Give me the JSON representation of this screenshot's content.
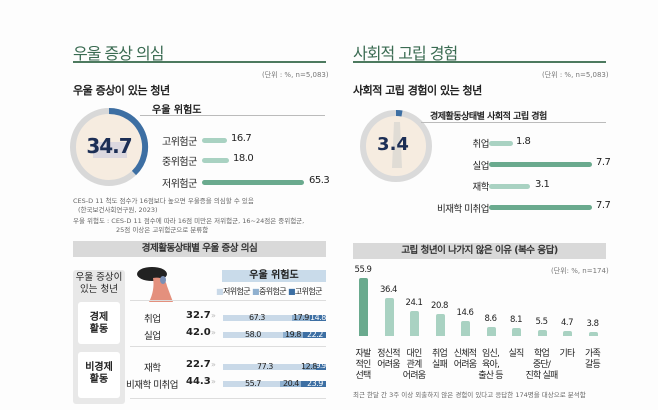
{
  "left": {
    "title": "우울 증상 의심",
    "unit": "(단위 : %, n=5,083)",
    "subhead": "우울 증상이 있는 청년",
    "donut_value": "34.7",
    "risk_title": "우울 위험도",
    "risk_bars": [
      {
        "label": "고위험군",
        "value": "16.7"
      },
      {
        "label": "중위험군",
        "value": "18.0"
      },
      {
        "label": "저위험군",
        "value": "65.3"
      }
    ],
    "notes": [
      "CES-D 11 척도 점수가 16점보다 높으면 우울증을 의심할 수 있음",
      "(한국보건사회연구원, 2023)",
      "우울 위험도 : CES-D 11 점수에 따라 16점 미만은 저위험군, 16~24점은 중위험군,",
      "25점 이상은 고위험군으로 분류함"
    ],
    "band_title": "경제활동상태별 우울 증상 의심",
    "side_label": "우울 증상이 있는 청년",
    "group1": "경제 활동",
    "group2": "비경제 활동",
    "legend_title": "우울 위험도",
    "legend": [
      "저위험군",
      "중위험군",
      "고위험군"
    ],
    "rows": [
      {
        "label": "취업",
        "total": "32.7",
        "low": "67.3",
        "mid": "17.9",
        "high": "14.8"
      },
      {
        "label": "실업",
        "total": "42.0",
        "low": "58.0",
        "mid": "19.8",
        "high": "22.2"
      },
      {
        "label": "재학",
        "total": "22.7",
        "low": "77.3",
        "mid": "12.8",
        "high": "9.9"
      },
      {
        "label": "비재학 미취업",
        "total": "44.3",
        "low": "55.7",
        "mid": "20.4",
        "high": "23.9"
      }
    ],
    "arrow": "»"
  },
  "right": {
    "title": "사회적 고립 경험",
    "unit": "(단위 : %, n=5,083)",
    "subhead": "사회적 고립 경험이 있는 청년",
    "donut_value": "3.4",
    "bars_title": "경제활동상태별 사회적 고립 경험",
    "bars": [
      {
        "label": "취업",
        "value": "1.8"
      },
      {
        "label": "실업",
        "value": "7.7"
      },
      {
        "label": "재학",
        "value": "3.1"
      },
      {
        "label": "비재학 미취업",
        "value": "7.7"
      }
    ],
    "band_title": "고립 청년이 나가지 않은 이유 (복수 응답)",
    "unit2": "(단위: %, n=174)",
    "reasons": [
      {
        "label": "자발\n적인\n선택",
        "value": "55.9"
      },
      {
        "label": "정신적\n어려움",
        "value": "36.4"
      },
      {
        "label": "대인\n관계\n어려움",
        "value": "24.1"
      },
      {
        "label": "취업\n실패",
        "value": "20.8"
      },
      {
        "label": "신체적\n어려움",
        "value": "14.6"
      },
      {
        "label": "임신,\n육아,\n출산 등",
        "value": "8.6"
      },
      {
        "label": "실직",
        "value": "8.1"
      },
      {
        "label": "학업\n중단/\n진학 실패",
        "value": "5.5"
      },
      {
        "label": "기타",
        "value": "4.7"
      },
      {
        "label": "가족\n갈등",
        "value": "3.8"
      }
    ],
    "footnote": "최근 한달 간 3주 이상 외출하지 않은 경험이 있다고 응답한 174명을 대상으로 분석함"
  },
  "colors": {
    "title_green": "#3a6b52",
    "bar_dark": "#6aaa8e",
    "bar_light": "#a9d2c2",
    "low": "#c9d9e8",
    "mid": "#8fb0cf",
    "high": "#3d6fa3"
  },
  "chart_data": [
    {
      "type": "bar",
      "title": "우울 위험도",
      "categories": [
        "고위험군",
        "중위험군",
        "저위험군"
      ],
      "values": [
        16.7,
        18.0,
        65.3
      ]
    },
    {
      "type": "bar",
      "title": "경제활동상태별 우울 증상 의심",
      "categories": [
        "취업",
        "실업",
        "재학",
        "비재학 미취업"
      ],
      "series": [
        {
          "name": "우울 증상 (%)",
          "values": [
            32.7,
            42.0,
            22.7,
            44.3
          ]
        },
        {
          "name": "저위험군",
          "values": [
            67.3,
            58.0,
            77.3,
            55.7
          ]
        },
        {
          "name": "중위험군",
          "values": [
            17.9,
            19.8,
            12.8,
            20.4
          ]
        },
        {
          "name": "고위험군",
          "values": [
            14.8,
            22.2,
            9.9,
            23.9
          ]
        }
      ]
    },
    {
      "type": "bar",
      "title": "경제활동상태별 사회적 고립 경험",
      "categories": [
        "취업",
        "실업",
        "재학",
        "비재학 미취업"
      ],
      "values": [
        1.8,
        7.7,
        3.1,
        7.7
      ]
    },
    {
      "type": "bar",
      "title": "고립 청년이 나가지 않은 이유 (복수 응답)",
      "categories": [
        "자발적인 선택",
        "정신적 어려움",
        "대인관계 어려움",
        "취업 실패",
        "신체적 어려움",
        "임신, 육아, 출산 등",
        "실직",
        "학업 중단/진학 실패",
        "기타",
        "가족 갈등"
      ],
      "values": [
        55.9,
        36.4,
        24.1,
        20.8,
        14.6,
        8.6,
        8.1,
        5.5,
        4.7,
        3.8
      ]
    }
  ]
}
